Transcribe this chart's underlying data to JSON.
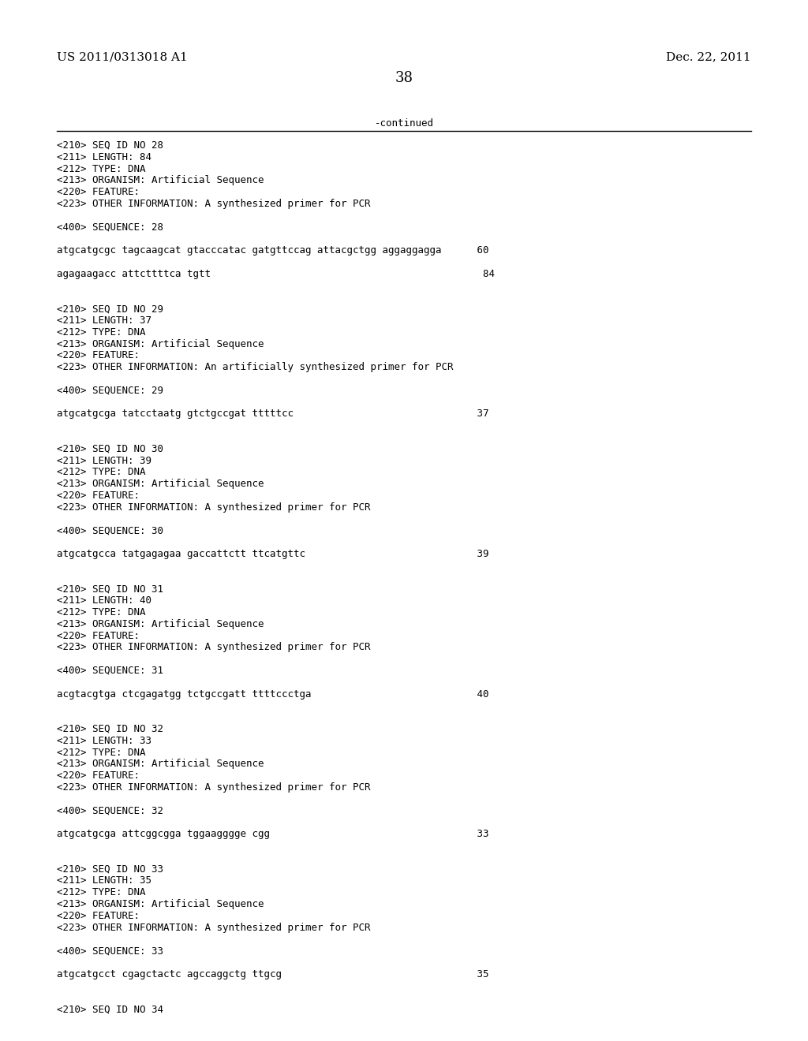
{
  "bg_color": "#ffffff",
  "header_left": "US 2011/0313018 A1",
  "header_right": "Dec. 22, 2011",
  "page_number": "38",
  "continued_text": "-continued",
  "font_size_header": 11,
  "font_size_page": 13,
  "font_size_mono": 9,
  "content_lines": [
    "<210> SEQ ID NO 28",
    "<211> LENGTH: 84",
    "<212> TYPE: DNA",
    "<213> ORGANISM: Artificial Sequence",
    "<220> FEATURE:",
    "<223> OTHER INFORMATION: A synthesized primer for PCR",
    "",
    "<400> SEQUENCE: 28",
    "",
    "atgcatgcgc tagcaagcat gtacccatac gatgttccag attacgctgg aggaggagga      60",
    "",
    "agagaagacc attcttttca tgtt                                              84",
    "",
    "",
    "<210> SEQ ID NO 29",
    "<211> LENGTH: 37",
    "<212> TYPE: DNA",
    "<213> ORGANISM: Artificial Sequence",
    "<220> FEATURE:",
    "<223> OTHER INFORMATION: An artificially synthesized primer for PCR",
    "",
    "<400> SEQUENCE: 29",
    "",
    "atgcatgcga tatcctaatg gtctgccgat tttttcc                               37",
    "",
    "",
    "<210> SEQ ID NO 30",
    "<211> LENGTH: 39",
    "<212> TYPE: DNA",
    "<213> ORGANISM: Artificial Sequence",
    "<220> FEATURE:",
    "<223> OTHER INFORMATION: A synthesized primer for PCR",
    "",
    "<400> SEQUENCE: 30",
    "",
    "atgcatgcca tatgagagaa gaccattctt ttcatgttc                             39",
    "",
    "",
    "<210> SEQ ID NO 31",
    "<211> LENGTH: 40",
    "<212> TYPE: DNA",
    "<213> ORGANISM: Artificial Sequence",
    "<220> FEATURE:",
    "<223> OTHER INFORMATION: A synthesized primer for PCR",
    "",
    "<400> SEQUENCE: 31",
    "",
    "acgtacgtga ctcgagatgg tctgccgatt ttttccctga                            40",
    "",
    "",
    "<210> SEQ ID NO 32",
    "<211> LENGTH: 33",
    "<212> TYPE: DNA",
    "<213> ORGANISM: Artificial Sequence",
    "<220> FEATURE:",
    "<223> OTHER INFORMATION: A synthesized primer for PCR",
    "",
    "<400> SEQUENCE: 32",
    "",
    "atgcatgcga attcggcgga tggaagggge cgg                                   33",
    "",
    "",
    "<210> SEQ ID NO 33",
    "<211> LENGTH: 35",
    "<212> TYPE: DNA",
    "<213> ORGANISM: Artificial Sequence",
    "<220> FEATURE:",
    "<223> OTHER INFORMATION: A synthesized primer for PCR",
    "",
    "<400> SEQUENCE: 33",
    "",
    "atgcatgcct cgagctactc agccaggctg ttgcg                                 35",
    "",
    "",
    "<210> SEQ ID NO 34"
  ]
}
